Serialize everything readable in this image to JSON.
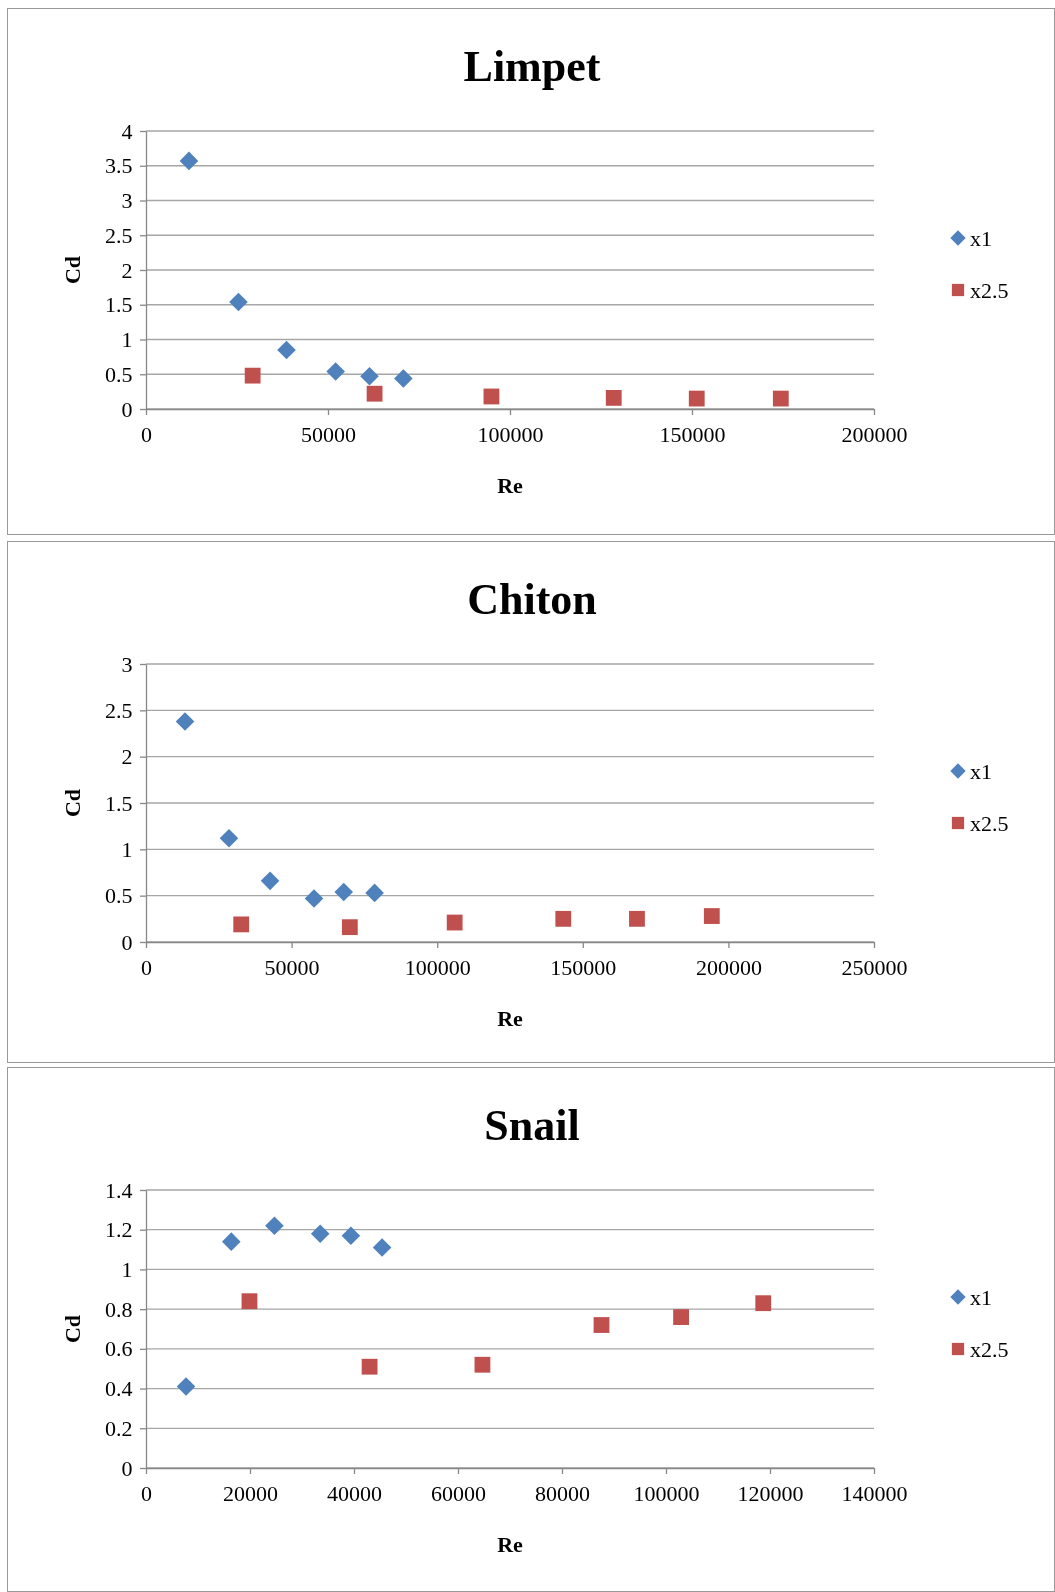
{
  "chart_data": [
    {
      "type": "scatter",
      "title": "Limpet",
      "xlabel": "Re",
      "ylabel": "Cd",
      "xlim": [
        0,
        200000
      ],
      "xticks": [
        0,
        50000,
        100000,
        150000,
        200000
      ],
      "ylim": [
        0,
        4
      ],
      "yticks": [
        0,
        0.5,
        1,
        1.5,
        2,
        2.5,
        3,
        3.5,
        4
      ],
      "grid": "y",
      "legend": "right",
      "series": [
        {
          "name": "x1",
          "color": "#4f81bd",
          "marker": "diamond",
          "x": [
            11800,
            25400,
            38600,
            52100,
            61400,
            70700
          ],
          "values": [
            3.57,
            1.54,
            0.85,
            0.54,
            0.47,
            0.44
          ]
        },
        {
          "name": "x2.5",
          "color": "#c0504d",
          "marker": "square",
          "x": [
            29300,
            62800,
            94900,
            128500,
            151300,
            174400
          ],
          "values": [
            0.48,
            0.22,
            0.18,
            0.16,
            0.15,
            0.15
          ]
        }
      ]
    },
    {
      "type": "scatter",
      "title": "Chiton",
      "xlabel": "Re",
      "ylabel": "Cd",
      "xlim": [
        0,
        250000
      ],
      "xticks": [
        0,
        50000,
        100000,
        150000,
        200000,
        250000
      ],
      "ylim": [
        0,
        3
      ],
      "yticks": [
        0,
        0.5,
        1,
        1.5,
        2,
        2.5,
        3
      ],
      "grid": "y",
      "legend": "right",
      "series": [
        {
          "name": "x1",
          "color": "#4f81bd",
          "marker": "diamond",
          "x": [
            13400,
            28500,
            42600,
            57700,
            67900,
            78500
          ],
          "values": [
            2.38,
            1.12,
            0.66,
            0.47,
            0.54,
            0.53
          ]
        },
        {
          "name": "x2.5",
          "color": "#c0504d",
          "marker": "square",
          "x": [
            32700,
            70000,
            106000,
            143300,
            168600,
            194300
          ],
          "values": [
            0.19,
            0.16,
            0.21,
            0.25,
            0.25,
            0.28
          ]
        }
      ]
    },
    {
      "type": "scatter",
      "title": "Snail",
      "xlabel": "Re",
      "ylabel": "Cd",
      "xlim": [
        0,
        140000
      ],
      "xticks": [
        0,
        20000,
        40000,
        60000,
        80000,
        100000,
        120000,
        140000
      ],
      "ylim": [
        0,
        1.4
      ],
      "yticks": [
        0,
        0.2,
        0.4,
        0.6,
        0.8,
        1,
        1.2,
        1.4
      ],
      "grid": "y",
      "legend": "right",
      "series": [
        {
          "name": "x1",
          "color": "#4f81bd",
          "marker": "diamond",
          "x": [
            7700,
            16400,
            24700,
            33500,
            39400,
            45400
          ],
          "values": [
            0.41,
            1.14,
            1.22,
            1.18,
            1.17,
            1.11
          ]
        },
        {
          "name": "x2.5",
          "color": "#c0504d",
          "marker": "square",
          "x": [
            19900,
            43000,
            64700,
            87600,
            102900,
            118700
          ],
          "values": [
            0.84,
            0.51,
            0.52,
            0.72,
            0.76,
            0.83
          ]
        }
      ]
    }
  ]
}
